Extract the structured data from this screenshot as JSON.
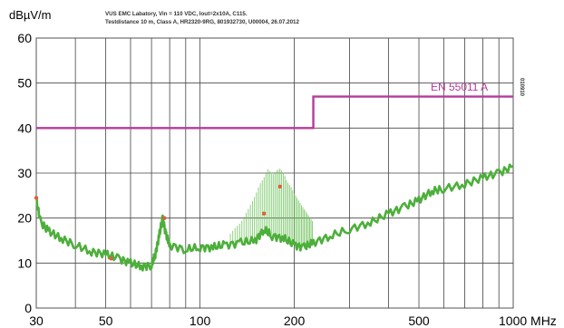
{
  "chart_data": {
    "type": "line",
    "title_lines": [
      "VUS EMC Labatory, Vin = 110 VDC, Iout=2x10A, C115.",
      "Testdistance 10 m, Class A, HR2320-9RG, 801932730, U00004, 26.07.2012"
    ],
    "ylabel": "dBµV/m",
    "xlabel_suffix": "MHz",
    "x_scale": "log",
    "xlim": [
      30,
      1000
    ],
    "ylim": [
      0,
      60
    ],
    "y_ticks": [
      0,
      10,
      20,
      30,
      40,
      50,
      60
    ],
    "x_tick_labels": [
      {
        "value": 30,
        "label": "30"
      },
      {
        "value": 50,
        "label": "50"
      },
      {
        "value": 100,
        "label": "100"
      },
      {
        "value": 200,
        "label": "200"
      },
      {
        "value": 500,
        "label": "500"
      },
      {
        "value": 1000,
        "label": "1000 MHz"
      }
    ],
    "grid": true,
    "limit_line": {
      "name": "EN 55011 A",
      "color": "#b43c9a",
      "points": [
        [
          30,
          40
        ],
        [
          230,
          40
        ],
        [
          230,
          47
        ],
        [
          1000,
          47
        ]
      ]
    },
    "side_label": "010910",
    "emission_series": {
      "color": "#4caf3a",
      "points": [
        [
          30,
          24
        ],
        [
          31,
          19
        ],
        [
          33,
          17
        ],
        [
          36,
          15.5
        ],
        [
          40,
          14
        ],
        [
          45,
          12.5
        ],
        [
          50,
          12
        ],
        [
          55,
          11
        ],
        [
          60,
          10
        ],
        [
          65,
          9.2
        ],
        [
          70,
          9.5
        ],
        [
          72,
          12
        ],
        [
          74,
          16
        ],
        [
          76,
          20
        ],
        [
          78,
          16
        ],
        [
          80,
          14
        ],
        [
          90,
          13
        ],
        [
          100,
          13.5
        ],
        [
          110,
          13.5
        ],
        [
          120,
          14
        ],
        [
          135,
          14.5
        ],
        [
          150,
          15
        ],
        [
          160,
          17.5
        ],
        [
          170,
          16
        ],
        [
          185,
          15.5
        ],
        [
          200,
          14
        ],
        [
          215,
          13.5
        ],
        [
          230,
          14.5
        ],
        [
          260,
          16
        ],
        [
          300,
          17.5
        ],
        [
          350,
          19
        ],
        [
          400,
          21
        ],
        [
          450,
          22.5
        ],
        [
          500,
          24
        ],
        [
          550,
          26
        ],
        [
          600,
          26.5
        ],
        [
          700,
          27.5
        ],
        [
          800,
          29
        ],
        [
          900,
          30
        ],
        [
          1000,
          31.5
        ]
      ]
    },
    "spike_series": {
      "color": "#6dc25a",
      "points": [
        [
          125,
          16.5
        ],
        [
          130,
          18
        ],
        [
          135,
          19
        ],
        [
          140,
          21
        ],
        [
          145,
          23
        ],
        [
          150,
          25
        ],
        [
          155,
          27.5
        ],
        [
          160,
          29
        ],
        [
          165,
          31
        ],
        [
          170,
          29.5
        ],
        [
          175,
          30.5
        ],
        [
          180,
          31
        ],
        [
          185,
          30
        ],
        [
          190,
          28
        ],
        [
          195,
          27
        ],
        [
          200,
          25.5
        ],
        [
          210,
          23
        ],
        [
          220,
          21
        ],
        [
          230,
          19
        ]
      ]
    },
    "peak_markers": {
      "color": "#e0603a",
      "points": [
        [
          30,
          24.5
        ],
        [
          52,
          11
        ],
        [
          77,
          20
        ],
        [
          160,
          21
        ],
        [
          180,
          27
        ]
      ]
    }
  }
}
